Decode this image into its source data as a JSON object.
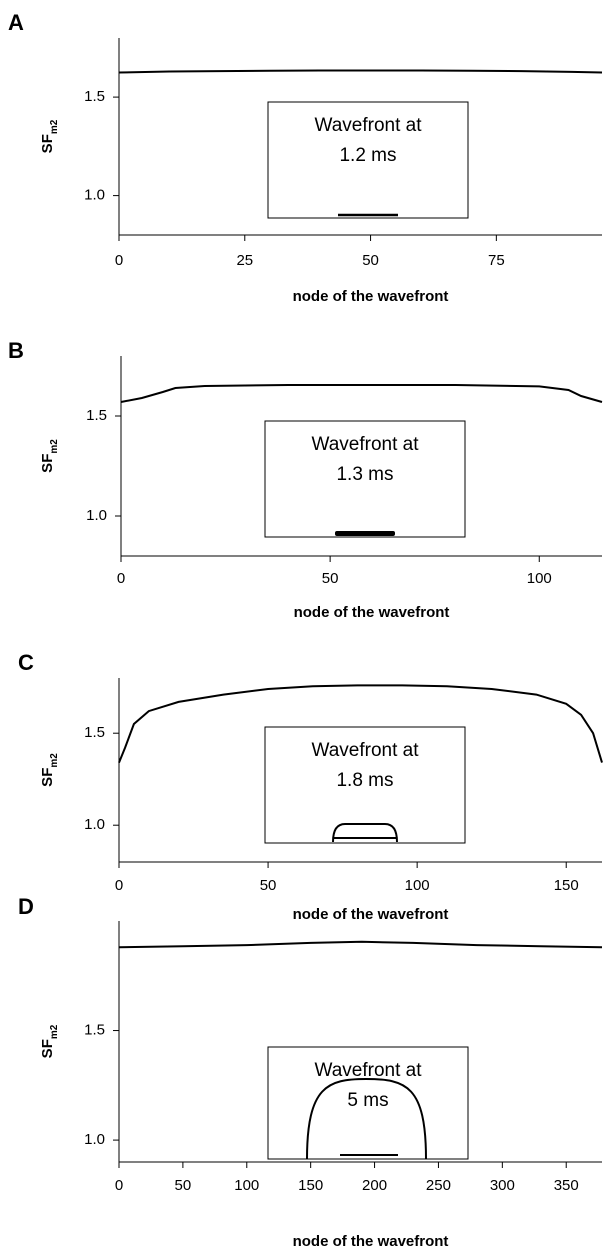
{
  "chart_data": [
    {
      "type": "line",
      "panel": "A",
      "y_label": "SF",
      "y_label_sub": "m2",
      "x_label": "node of the wavefront",
      "inset": [
        "Wavefront at",
        "1.2 ms"
      ],
      "xlim": [
        0,
        96
      ],
      "xticks": [
        0,
        25,
        50,
        75
      ],
      "ylim": [
        0.8,
        1.8
      ],
      "yticks": [
        {
          "value": 1,
          "label": "1.0"
        },
        1.5
      ],
      "series": [
        {
          "color": "#000000",
          "x": [
            0,
            10,
            20,
            30,
            40,
            50,
            60,
            70,
            80,
            90,
            96
          ],
          "values": [
            1.625,
            1.63,
            1.632,
            1.634,
            1.635,
            1.635,
            1.635,
            1.634,
            1.632,
            1.628,
            1.625
          ]
        }
      ]
    },
    {
      "type": "line",
      "panel": "B",
      "y_label": "SF",
      "y_label_sub": "m2",
      "x_label": "node of the wavefront",
      "inset": [
        "Wavefront at",
        "1.3 ms"
      ],
      "xlim": [
        0,
        115
      ],
      "xticks": [
        0,
        50,
        100
      ],
      "ylim": [
        0.8,
        1.8
      ],
      "yticks": [
        {
          "value": 1,
          "label": "1.0"
        },
        1.5
      ],
      "series": [
        {
          "color": "#000000",
          "x": [
            0,
            5,
            10,
            13,
            20,
            40,
            60,
            80,
            100,
            107,
            110,
            115
          ],
          "values": [
            1.57,
            1.59,
            1.62,
            1.64,
            1.65,
            1.655,
            1.655,
            1.655,
            1.648,
            1.63,
            1.6,
            1.57
          ]
        }
      ]
    },
    {
      "type": "line",
      "panel": "C",
      "y_label": "SF",
      "y_label_sub": "m2",
      "x_label": "node of the wavefront",
      "inset": [
        "Wavefront at",
        "1.8 ms"
      ],
      "xlim": [
        0,
        162
      ],
      "xticks": [
        0,
        50,
        100,
        150
      ],
      "ylim": [
        0.8,
        1.8
      ],
      "yticks": [
        {
          "value": 1,
          "label": "1.0"
        },
        1.5
      ],
      "series": [
        {
          "color": "#000000",
          "x": [
            0,
            2,
            5,
            10,
            20,
            35,
            50,
            65,
            80,
            95,
            110,
            125,
            140,
            150,
            155,
            159,
            162
          ],
          "values": [
            1.34,
            1.42,
            1.55,
            1.62,
            1.67,
            1.71,
            1.74,
            1.755,
            1.76,
            1.76,
            1.755,
            1.74,
            1.71,
            1.66,
            1.6,
            1.5,
            1.34
          ]
        }
      ]
    },
    {
      "type": "line",
      "panel": "D",
      "y_label": "SF",
      "y_label_sub": "m2",
      "x_label": "node of the wavefront",
      "inset": [
        "Wavefront at",
        "5 ms"
      ],
      "xlim": [
        0,
        378
      ],
      "xticks": [
        0,
        50,
        100,
        150,
        200,
        250,
        300,
        350
      ],
      "ylim": [
        0.9,
        2.0
      ],
      "yticks": [
        {
          "value": 1,
          "label": "1.0"
        },
        1.5
      ],
      "series": [
        {
          "color": "#000000",
          "x": [
            0,
            50,
            100,
            150,
            190,
            230,
            280,
            330,
            378
          ],
          "values": [
            1.88,
            1.885,
            1.89,
            1.9,
            1.905,
            1.9,
            1.89,
            1.885,
            1.88
          ]
        }
      ]
    }
  ]
}
